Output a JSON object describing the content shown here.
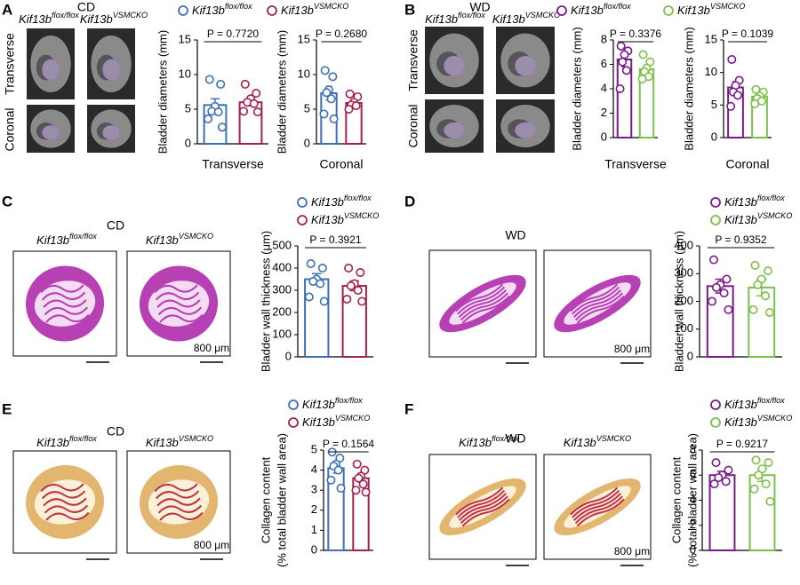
{
  "panels": [
    {
      "letter": "A",
      "condition": "CD",
      "images": [
        {
          "name": "Kif13b",
          "superscript": "flox/flox"
        },
        {
          "name": "Kif13b",
          "superscript": "VSMCKO"
        }
      ],
      "rows": [
        "Transverse",
        "Coronal"
      ]
    },
    {
      "letter": "B",
      "condition": "WD",
      "images": [
        {
          "name": "Kif13b",
          "superscript": "flox/flox"
        },
        {
          "name": "Kif13b",
          "superscript": "VSMCKO"
        }
      ],
      "rows": [
        "Transverse",
        "Coronal"
      ]
    },
    {
      "letter": "C",
      "condition": "CD",
      "images": [
        {
          "name": "Kif13b",
          "superscript": "flox/flox"
        },
        {
          "name": "Kif13b",
          "superscript": "VSMCKO"
        }
      ],
      "scale_bar": "800 μm"
    },
    {
      "letter": "D",
      "condition": "WD",
      "images": [
        {
          "name": "Kif13b",
          "superscript": "flox/flox"
        },
        {
          "name": "Kif13b",
          "superscript": "VSMCKO"
        }
      ],
      "scale_bar": "800 μm"
    },
    {
      "letter": "E",
      "condition": "CD",
      "images": [
        {
          "name": "Kif13b",
          "superscript": "flox/flox"
        },
        {
          "name": "Kif13b",
          "superscript": "VSMCKO"
        }
      ],
      "scale_bar": "800 μm"
    },
    {
      "letter": "F",
      "condition": "WD",
      "images": [
        {
          "name": "Kif13b",
          "superscript": "flox/flox"
        },
        {
          "name": "Kif13b",
          "superscript": "VSMCKO"
        }
      ],
      "scale_bar": "800 μm"
    }
  ],
  "chart_data": [
    {
      "type": "bar",
      "y_label": "Bladder diameters (mm)",
      "x_label": "Transverse",
      "p_label": "P = 0.7720",
      "ylim": [
        0,
        15
      ],
      "yticks": [
        0,
        5,
        10,
        15
      ],
      "series": [
        {
          "name": "Kif13b",
          "superscript": "flox/flox",
          "color": "#3d6fb6",
          "value": 5.6,
          "error": 0.9,
          "points": [
            9.3,
            8.6,
            5.4,
            4.7,
            4.6,
            3.6,
            2.4
          ]
        },
        {
          "name": "Kif13b",
          "superscript": "VSMCKO",
          "color": "#a3204f",
          "value": 6.0,
          "error": 0.5,
          "points": [
            8.6,
            7.3,
            6.5,
            6.0,
            5.8,
            4.7,
            4.6
          ]
        }
      ]
    },
    {
      "type": "bar",
      "y_label": "Bladder diameters (mm)",
      "x_label": "Coronal",
      "p_label": "P = 0.2680",
      "ylim": [
        0,
        15
      ],
      "yticks": [
        0,
        5,
        10,
        15
      ],
      "series": [
        {
          "color": "#3d6fb6",
          "value": 7.3,
          "error": 1.0,
          "points": [
            10.6,
            9.7,
            7.8,
            7.4,
            6.5,
            4.3,
            3.6
          ]
        },
        {
          "color": "#a3204f",
          "value": 5.9,
          "error": 0.4,
          "points": [
            7.2,
            6.8,
            6.0,
            5.6,
            5.5,
            5.0
          ]
        }
      ]
    },
    {
      "type": "bar",
      "y_label": "Bladder diameters (mm)",
      "x_label": "Transverse",
      "p_label": "P = 0.3376",
      "ylim": [
        0,
        8
      ],
      "yticks": [
        0,
        2,
        4,
        6,
        8
      ],
      "series": [
        {
          "name": "Kif13b",
          "superscript": "flox/flox",
          "color": "#7a1a8a",
          "value": 6.4,
          "error": 0.6,
          "points": [
            7.5,
            7.1,
            6.8,
            6.2,
            5.5,
            4.0
          ]
        },
        {
          "name": "Kif13b",
          "superscript": "VSMCKO",
          "color": "#7cc04a",
          "value": 5.6,
          "error": 0.3,
          "points": [
            6.8,
            6.2,
            5.7,
            5.4,
            5.0,
            4.8
          ]
        }
      ]
    },
    {
      "type": "bar",
      "y_label": "Bladder diameters (mm)",
      "x_label": "Coronal",
      "p_label": "P = 0.1039",
      "ylim": [
        0,
        15
      ],
      "yticks": [
        0,
        5,
        10,
        15
      ],
      "series": [
        {
          "color": "#7a1a8a",
          "value": 7.7,
          "error": 0.9,
          "points": [
            12.0,
            8.8,
            8.0,
            7.0,
            6.5,
            4.8
          ]
        },
        {
          "color": "#7cc04a",
          "value": 6.3,
          "error": 0.4,
          "points": [
            7.4,
            7.0,
            6.4,
            6.0,
            5.6,
            5.2
          ]
        }
      ]
    },
    {
      "type": "bar",
      "y_label": "Bladder wall thickness (μm)",
      "p_label": "P = 0.3921",
      "ylim": [
        0,
        500
      ],
      "yticks": [
        0,
        100,
        200,
        300,
        400,
        500
      ],
      "series": [
        {
          "name": "Kif13b",
          "superscript": "flox/flox",
          "color": "#3d6fb6",
          "value": 350,
          "error": 25,
          "points": [
            420,
            400,
            350,
            340,
            330,
            270,
            250
          ]
        },
        {
          "name": "Kif13b",
          "superscript": "VSMCKO",
          "color": "#a3204f",
          "value": 320,
          "error": 22,
          "points": [
            400,
            380,
            330,
            320,
            300,
            260,
            250
          ]
        }
      ]
    },
    {
      "type": "bar",
      "y_label": "Bladder wall thickness (μm)",
      "p_label": "P = 0.9352",
      "ylim": [
        0,
        400
      ],
      "yticks": [
        0,
        100,
        200,
        300,
        400
      ],
      "series": [
        {
          "name": "Kif13b",
          "superscript": "flox/flox",
          "color": "#7a1a8a",
          "value": 255,
          "error": 25,
          "points": [
            350,
            280,
            260,
            250,
            230,
            200,
            170
          ]
        },
        {
          "name": "Kif13b",
          "superscript": "VSMCKO",
          "color": "#7cc04a",
          "value": 250,
          "error": 30,
          "points": [
            330,
            310,
            280,
            260,
            220,
            170,
            160
          ]
        }
      ]
    },
    {
      "type": "bar",
      "y_label": [
        "Collagen content",
        "(% total bladder wall area)"
      ],
      "p_label": "P = 0.1564",
      "ylim": [
        0,
        5
      ],
      "yticks": [
        0,
        1,
        2,
        3,
        4,
        5
      ],
      "series": [
        {
          "name": "Kif13b",
          "superscript": "flox/flox",
          "color": "#3d6fb6",
          "value": 4.1,
          "error": 0.25,
          "points": [
            4.9,
            4.6,
            4.3,
            4.2,
            4.0,
            3.5,
            3.1
          ]
        },
        {
          "name": "Kif13b",
          "superscript": "VSMCKO",
          "color": "#a3204f",
          "value": 3.6,
          "error": 0.2,
          "points": [
            4.3,
            4.0,
            3.7,
            3.6,
            3.3,
            3.0,
            2.9
          ]
        }
      ]
    },
    {
      "type": "bar",
      "y_label": [
        "Collagen content",
        "(% total bladder wall area)"
      ],
      "p_label": "P = 0.9217",
      "ylim": [
        0,
        8
      ],
      "yticks": [
        0,
        2,
        4,
        6,
        8
      ],
      "series": [
        {
          "name": "Kif13b",
          "superscript": "flox/flox",
          "color": "#7a1a8a",
          "value": 6.0,
          "error": 0.3,
          "points": [
            7.0,
            6.4,
            6.0,
            5.8,
            5.5,
            5.3
          ]
        },
        {
          "name": "Kif13b",
          "superscript": "VSMCKO",
          "color": "#7cc04a",
          "value": 6.0,
          "error": 0.5,
          "points": [
            7.2,
            7.0,
            6.5,
            6.0,
            5.3,
            4.9,
            3.9
          ]
        }
      ]
    }
  ]
}
